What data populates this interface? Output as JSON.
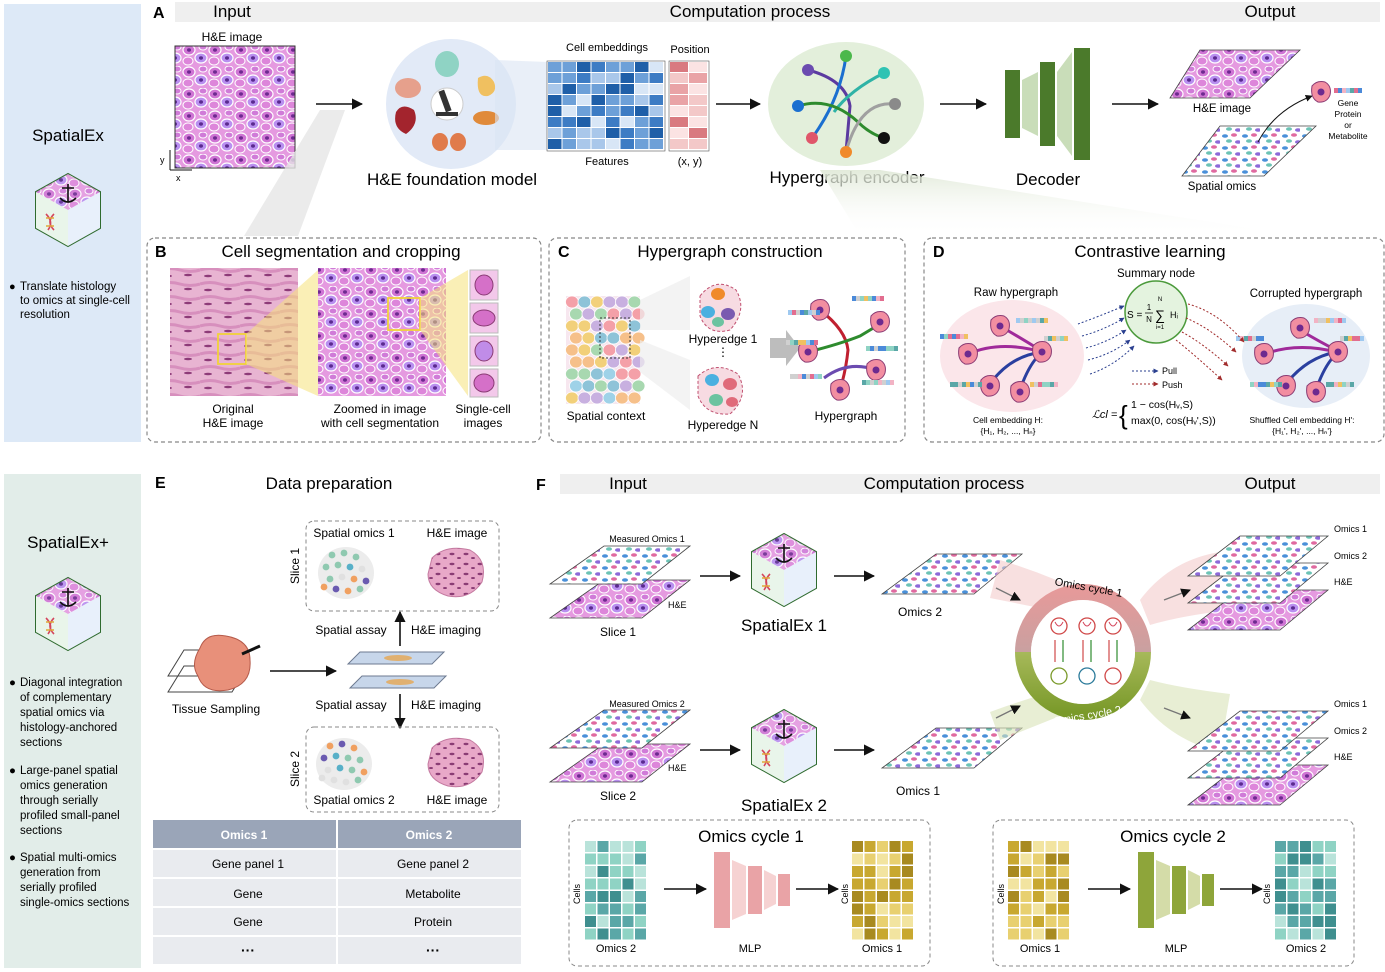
{
  "sidebar": {
    "top": {
      "title": "SpatialEx",
      "bullets": [
        "Translate histology",
        "to omics at single-cell",
        "resolution"
      ]
    },
    "bottom": {
      "title": "SpatialEx+",
      "bullet1": [
        "Diagonal integration",
        "of complementary",
        "spatial omics via",
        "histology-anchored",
        "sections"
      ],
      "bullet2": [
        "Large-panel spatial",
        "omics generation",
        "through serially",
        "profiled small-panel",
        "sections"
      ],
      "bullet3": [
        "Spatial multi-omics",
        "generation from",
        "serially profiled",
        "single-omics sections"
      ]
    }
  },
  "panelA": {
    "letter": "A",
    "header": {
      "input": "Input",
      "process": "Computation process",
      "output": "Output"
    },
    "he_image_label": "H&E image",
    "axis_x": "x",
    "axis_y": "y",
    "foundation_model": "H&E foundation model",
    "cell_embeddings": "Cell embeddings",
    "position": "Position",
    "features": "Features",
    "xy": "(x, y)",
    "hypergraph_encoder": "Hypergraph encoder",
    "decoder": "Decoder",
    "out_he": "H&E image",
    "out_spatial": "Spatial omics",
    "out_gene": [
      "Gene",
      "Protein",
      "or",
      "Metabolite"
    ]
  },
  "panelB": {
    "letter": "B",
    "title": "Cell segmentation and cropping",
    "original": [
      "Original",
      "H&E image"
    ],
    "zoomed": [
      "Zoomed in image",
      "with cell segmentation"
    ],
    "single": [
      "Single-cell",
      "images"
    ]
  },
  "panelC": {
    "letter": "C",
    "title": "Hypergraph construction",
    "spatial_context": "Spatial context",
    "hyperedge1": "Hyperedge 1",
    "hyperedgeN": "Hyperedge N",
    "hypergraph": "Hypergraph"
  },
  "panelD": {
    "letter": "D",
    "title": "Contrastive learning",
    "summary_node": "Summary node",
    "raw": "Raw hypergraph",
    "corrupted": "Corrupted hypergraph",
    "pull": "Pull",
    "push": "Push",
    "cell_emb": "Cell embedding H:",
    "cell_emb_set": "{H₁, H₂, ..., Hₙ}",
    "shuffled": "Shuffled Cell embedding H':",
    "shuffled_set": "{H₁', H₂', ..., Hₙ'}",
    "formula_S": "S = ",
    "frac_num": "1",
    "frac_den": "N",
    "sum_top": "N",
    "sum_bot": "i=1",
    "sum_term": "Hᵢ",
    "loss_lhs": "ℒcl =",
    "loss_case1": "1 − cos(Hᵥ,S)",
    "loss_case2": "max(0, cos(Hᵥ',S))"
  },
  "panelE": {
    "letter": "E",
    "title": "Data preparation",
    "tissue_sampling": "Tissue Sampling",
    "slice1": "Slice 1",
    "slice2": "Slice 2",
    "spatial_omics1": "Spatial omics 1",
    "spatial_omics2": "Spatial omics 2",
    "he_image": "H&E image",
    "spatial_assay": "Spatial assay",
    "he_imaging": "H&E imaging",
    "table": {
      "headers": [
        "Omics 1",
        "Omics 2"
      ],
      "rows": [
        [
          "Gene panel 1",
          "Gene panel 2"
        ],
        [
          "Gene",
          "Metabolite"
        ],
        [
          "Gene",
          "Protein"
        ],
        [
          "···",
          "···"
        ]
      ]
    }
  },
  "panelF": {
    "letter": "F",
    "header": {
      "input": "Input",
      "process": "Computation process",
      "output": "Output"
    },
    "measured1": "Measured Omics 1",
    "measured2": "Measured Omics 2",
    "he": "H&E",
    "slice1": "Slice 1",
    "slice2": "Slice 2",
    "spatialex1": "SpatialEx 1",
    "spatialex2": "SpatialEx 2",
    "omics1": "Omics 1",
    "omics2": "Omics 2",
    "cycle1": "Omics cycle 1",
    "cycle2": "Omics cycle 2",
    "mlp": "MLP",
    "cells": "Cells"
  }
}
